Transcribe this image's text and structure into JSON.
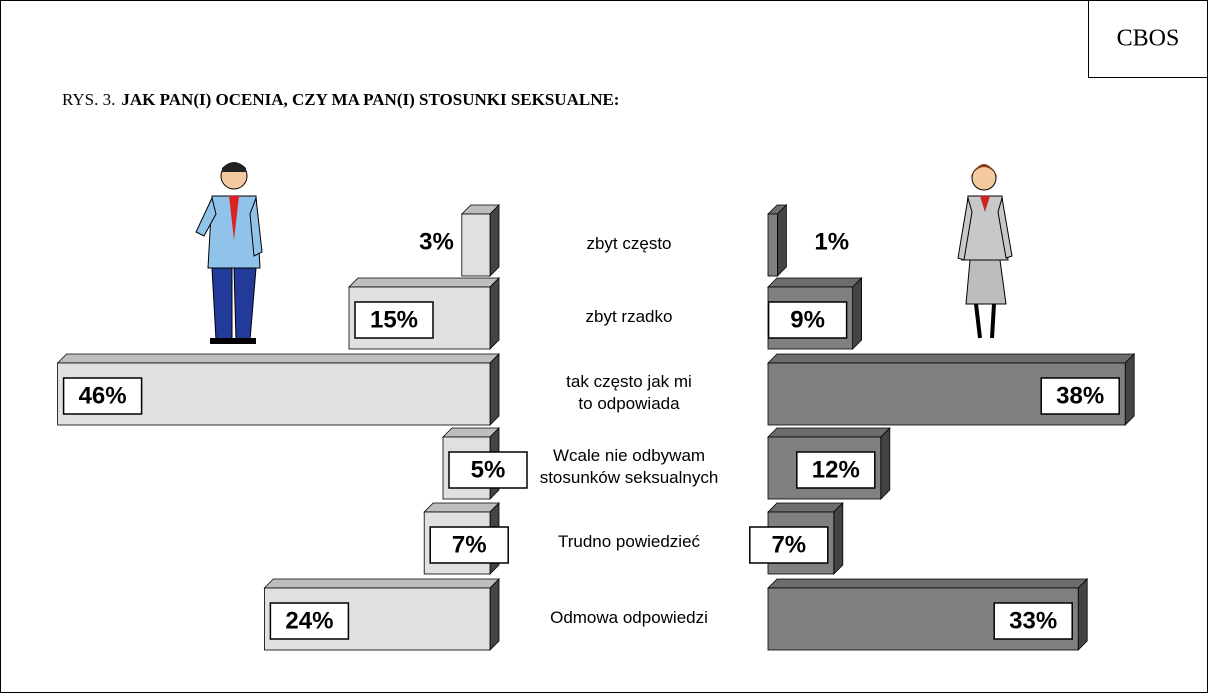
{
  "brand": "CBOS",
  "chart_data": {
    "type": "butterfly",
    "title_prefix": "RYS. 3.",
    "title": "JAK PAN(I) OCENIA, CZY MA PAN(I) STOSUNKI SEKSUALNE:",
    "categories": [
      "zbyt często",
      "zbyt rzadko",
      "tak często jak mi\nto odpowiada",
      "Wcale nie odbywam\nstosunków seksualnych",
      "Trudno powiedzieć",
      "Odmowa odpowiedzi"
    ],
    "series": [
      {
        "color": "#e0e0e0",
        "side": "left",
        "values": [
          3,
          15,
          46,
          5,
          7,
          24
        ],
        "value_labels": [
          "3%",
          "15%",
          "46%",
          "5%",
          "7%",
          "24%"
        ]
      },
      {
        "color": "#808080",
        "side": "right",
        "values": [
          1,
          9,
          38,
          12,
          7,
          33
        ],
        "value_labels": [
          "1%",
          "9%",
          "38%",
          "12%",
          "7%",
          "33%"
        ]
      }
    ]
  }
}
